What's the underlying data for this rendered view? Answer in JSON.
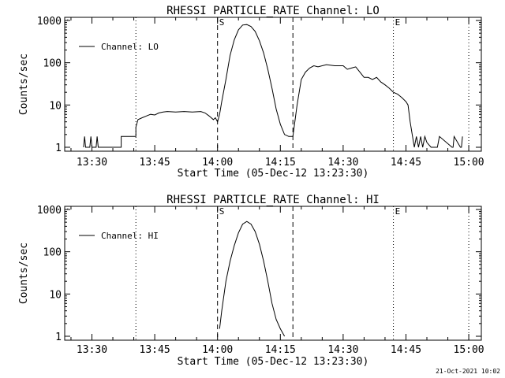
{
  "stamp": "21-Oct-2021 10:02",
  "chart_data": [
    {
      "type": "line",
      "title": "RHESSI PARTICLE_RATE Channel: LO",
      "xlabel": "Start Time (05-Dec-12 13:23:30)",
      "ylabel": "Counts/sec",
      "y_scale": "log",
      "ylim": [
        1,
        1000
      ],
      "yticks": [
        1,
        10,
        100,
        1000
      ],
      "ytick_labels": [
        "1",
        "10",
        "100",
        "1000"
      ],
      "xlim": [
        "13:23:30",
        "15:03:00"
      ],
      "xtick_labels": [
        "13:30",
        "13:45",
        "14:00",
        "14:15",
        "14:30",
        "14:45",
        "15:00"
      ],
      "legend": "Channel: LO",
      "legend_position": "top-left",
      "markers": [
        {
          "time": "13:40:30",
          "style": "dotted",
          "label": ""
        },
        {
          "time": "14:00:00",
          "style": "dashed",
          "label": "S"
        },
        {
          "time": "14:18:00",
          "style": "dashed",
          "label": ""
        },
        {
          "time": "14:42:00",
          "style": "dotted",
          "label": "E"
        },
        {
          "time": "15:00:00",
          "style": "dotted",
          "label": ""
        }
      ],
      "series": [
        {
          "name": "Channel: LO",
          "x": [
            "13:28:00",
            "13:28:15",
            "13:28:30",
            "13:29:30",
            "13:29:45",
            "13:30:00",
            "13:31:00",
            "13:31:15",
            "13:31:30",
            "13:37:00",
            "13:37:00",
            "13:40:30",
            "13:40:30",
            "13:41:00",
            "13:42:00",
            "13:43:00",
            "13:44:00",
            "13:45:00",
            "13:46:00",
            "13:47:00",
            "13:48:00",
            "13:50:00",
            "13:52:00",
            "13:54:00",
            "13:56:00",
            "13:57:00",
            "13:58:00",
            "13:59:00",
            "13:59:30",
            "14:00:00",
            "14:00:30",
            "14:01:00",
            "14:02:00",
            "14:03:00",
            "14:04:00",
            "14:05:00",
            "14:06:00",
            "14:07:00",
            "14:08:00",
            "14:09:00",
            "14:10:00",
            "14:11:00",
            "14:12:00",
            "14:13:00",
            "14:14:00",
            "14:15:00",
            "14:16:00",
            "14:17:00",
            "14:17:00",
            "14:18:00",
            "14:19:00",
            "14:20:00",
            "14:21:00",
            "14:22:00",
            "14:23:00",
            "14:24:00",
            "14:26:00",
            "14:28:00",
            "14:30:00",
            "14:31:00",
            "14:32:00",
            "14:33:00",
            "14:34:00",
            "14:35:00",
            "14:36:00",
            "14:37:00",
            "14:38:00",
            "14:39:00",
            "14:40:00",
            "14:41:00",
            "14:42:00",
            "14:43:00",
            "14:44:00",
            "14:45:00",
            "14:45:30",
            "14:46:00",
            "14:46:30",
            "14:47:00",
            "14:47:30",
            "14:48:00",
            "14:48:30",
            "14:49:00",
            "14:49:30",
            "14:50:00",
            "14:51:00",
            "14:52:00",
            "14:52:30",
            "14:53:00",
            "14:56:00",
            "14:56:15",
            "14:56:30",
            "14:58:00",
            "14:58:15",
            "14:58:30"
          ],
          "values": [
            1,
            1.8,
            1,
            1,
            1.8,
            1,
            1,
            1.8,
            1,
            1,
            1.8,
            1.8,
            3,
            4.5,
            5,
            5.5,
            6,
            5.8,
            6.5,
            6.8,
            7,
            6.8,
            7,
            6.8,
            7,
            6.5,
            5.5,
            4.5,
            5,
            4,
            6,
            12,
            40,
            150,
            350,
            600,
            780,
            800,
            720,
            550,
            330,
            170,
            70,
            25,
            8,
            3.5,
            2,
            1.8,
            1.8,
            1.8,
            10,
            40,
            60,
            75,
            85,
            80,
            90,
            85,
            85,
            70,
            75,
            80,
            60,
            45,
            45,
            40,
            45,
            35,
            30,
            25,
            20,
            18,
            15,
            12,
            10,
            4,
            2,
            1,
            1.8,
            1,
            1.8,
            1,
            1.8,
            1.3,
            1,
            1,
            1,
            1.8,
            1,
            1,
            1.8,
            1,
            1,
            1.8
          ]
        }
      ]
    },
    {
      "type": "line",
      "title": "RHESSI PARTICLE_RATE Channel: HI",
      "xlabel": "Start Time (05-Dec-12 13:23:30)",
      "ylabel": "Counts/sec",
      "y_scale": "log",
      "ylim": [
        1,
        1000
      ],
      "yticks": [
        1,
        10,
        100,
        1000
      ],
      "ytick_labels": [
        "1",
        "10",
        "100",
        "1000"
      ],
      "xlim": [
        "13:23:30",
        "15:03:00"
      ],
      "xtick_labels": [
        "13:30",
        "13:45",
        "14:00",
        "14:15",
        "14:30",
        "14:45",
        "15:00"
      ],
      "legend": "Channel: HI",
      "legend_position": "top-left",
      "markers": [
        {
          "time": "13:40:30",
          "style": "dotted",
          "label": ""
        },
        {
          "time": "14:00:00",
          "style": "dashed",
          "label": "S"
        },
        {
          "time": "14:18:00",
          "style": "dashed",
          "label": ""
        },
        {
          "time": "14:42:00",
          "style": "dotted",
          "label": "E"
        },
        {
          "time": "15:00:00",
          "style": "dotted",
          "label": ""
        }
      ],
      "series": [
        {
          "name": "Channel: HI",
          "x": [
            "14:00:30",
            "14:01:00",
            "14:02:00",
            "14:03:00",
            "14:04:00",
            "14:05:00",
            "14:06:00",
            "14:07:00",
            "14:08:00",
            "14:09:00",
            "14:10:00",
            "14:11:00",
            "14:12:00",
            "14:13:00",
            "14:14:00",
            "14:15:00",
            "14:16:00"
          ],
          "values": [
            1.5,
            4,
            20,
            60,
            140,
            280,
            450,
            520,
            450,
            300,
            150,
            60,
            20,
            6,
            2.5,
            1.5,
            1
          ]
        }
      ]
    }
  ]
}
